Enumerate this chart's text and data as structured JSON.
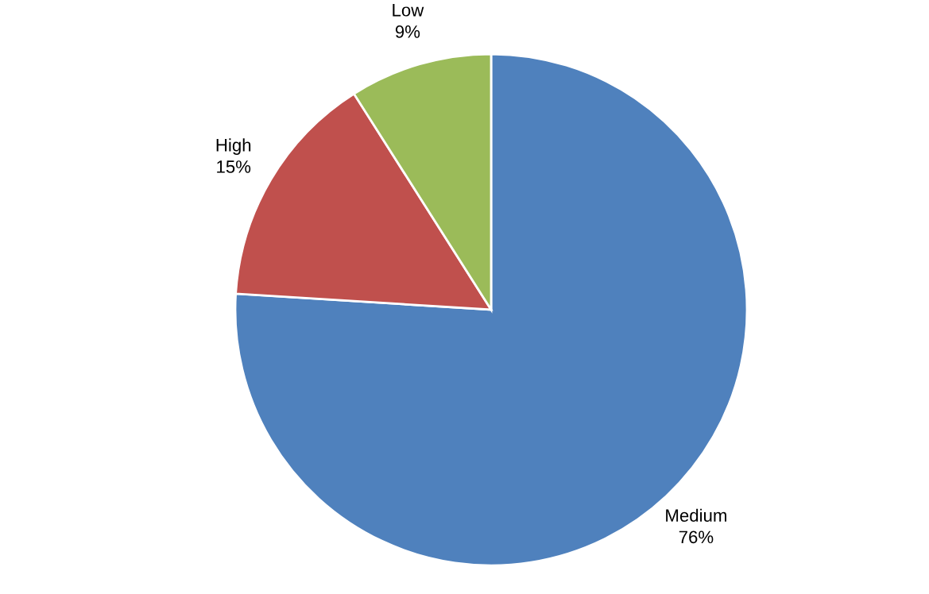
{
  "chart_data": {
    "type": "pie",
    "categories": [
      "Medium",
      "High",
      "Low"
    ],
    "values": [
      76,
      15,
      9
    ],
    "value_labels": [
      "76%",
      "15%",
      "9%"
    ],
    "colors": [
      "#4f81bd",
      "#c0504d",
      "#9bbb59"
    ],
    "legend": false
  }
}
